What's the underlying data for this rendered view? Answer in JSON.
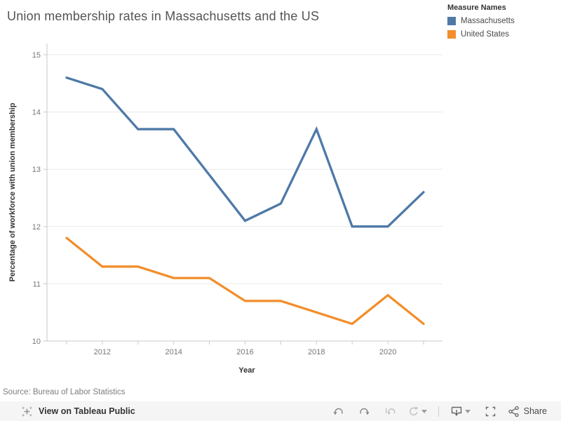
{
  "chart_data": {
    "type": "line",
    "title": "Union membership rates in Massachusetts and the US",
    "xlabel": "Year",
    "ylabel": "Percentage of workforce with union membership",
    "x": [
      2011,
      2012,
      2013,
      2014,
      2015,
      2016,
      2017,
      2018,
      2019,
      2020,
      2021
    ],
    "series": [
      {
        "name": "Massachusetts",
        "color": "#4e79a7",
        "values": [
          14.6,
          14.4,
          13.7,
          13.7,
          12.9,
          12.1,
          12.4,
          13.7,
          12.0,
          12.0,
          12.6
        ]
      },
      {
        "name": "United States",
        "color": "#f28e2b",
        "values": [
          11.8,
          11.3,
          11.3,
          11.1,
          11.1,
          10.7,
          10.7,
          10.5,
          10.3,
          10.8,
          10.3
        ]
      }
    ],
    "ylim": [
      10,
      15
    ],
    "yticks": [
      10,
      11,
      12,
      13,
      14,
      15
    ],
    "xtick_labels": [
      2012,
      2014,
      2016,
      2018,
      2020
    ],
    "grid": true,
    "legend_position": "top-right"
  },
  "legend": {
    "title": "Measure Names",
    "items": [
      {
        "label": "Massachusetts",
        "color": "#4e79a7"
      },
      {
        "label": "United States",
        "color": "#f28e2b"
      }
    ]
  },
  "caption": "Source: Bureau of Labor Statistics",
  "toolbar": {
    "view_label": "View on Tableau Public",
    "share_label": "Share",
    "icons": [
      "tableau-logo",
      "undo",
      "redo",
      "revert",
      "refresh",
      "refresh-options",
      "download",
      "download-options",
      "fullscreen",
      "share"
    ]
  },
  "colors": {
    "gridline": "#e9e9e9",
    "axis": "#c9c9c9",
    "tick_text": "#767676",
    "toolbar_bg": "#f5f5f5"
  }
}
